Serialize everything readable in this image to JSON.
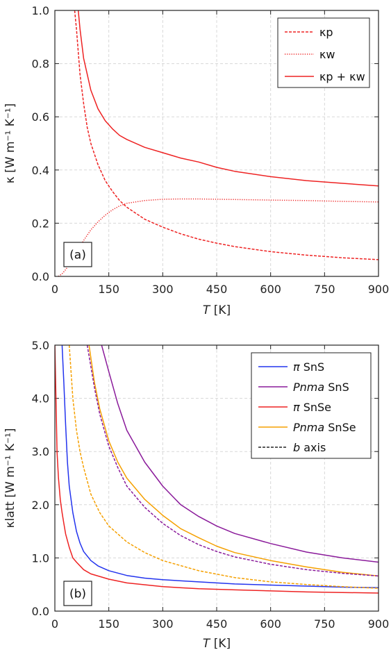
{
  "figure": "two-panel thermal conductivity vs temperature",
  "chart_data": [
    {
      "type": "line",
      "panel_label": "(a)",
      "xlabel_var": "T",
      "xlabel_unit": "[K]",
      "ylabel": "κ [W m⁻¹ K⁻¹]",
      "xlim": [
        0,
        900
      ],
      "ylim": [
        0,
        1.0
      ],
      "xticks": [
        "0",
        "150",
        "300",
        "450",
        "600",
        "750",
        "900"
      ],
      "yticks": [
        "0.0",
        "0.2",
        "0.4",
        "0.6",
        "0.8",
        "1.0"
      ],
      "grid": true,
      "legend_position": "top-right",
      "series": [
        {
          "name": "κp",
          "color": "#ee2222",
          "style": "dashed",
          "x": [
            55,
            60,
            70,
            80,
            90,
            100,
            120,
            140,
            160,
            180,
            200,
            250,
            300,
            350,
            400,
            450,
            500,
            600,
            700,
            800,
            900
          ],
          "y": [
            1.0,
            0.93,
            0.76,
            0.65,
            0.56,
            0.5,
            0.42,
            0.36,
            0.32,
            0.285,
            0.26,
            0.215,
            0.185,
            0.16,
            0.14,
            0.125,
            0.112,
            0.093,
            0.08,
            0.07,
            0.063
          ]
        },
        {
          "name": "κw",
          "color": "#ee2222",
          "style": "dotted",
          "x": [
            10,
            20,
            30,
            40,
            50,
            60,
            70,
            80,
            90,
            100,
            120,
            140,
            160,
            180,
            200,
            250,
            300,
            350,
            400,
            450,
            500,
            600,
            700,
            800,
            900
          ],
          "y": [
            0.0,
            0.01,
            0.025,
            0.045,
            0.065,
            0.09,
            0.11,
            0.135,
            0.155,
            0.175,
            0.205,
            0.23,
            0.25,
            0.265,
            0.275,
            0.285,
            0.29,
            0.291,
            0.291,
            0.29,
            0.289,
            0.287,
            0.285,
            0.282,
            0.28
          ]
        },
        {
          "name": "κp + κw",
          "color": "#ee2222",
          "style": "solid",
          "x": [
            65,
            70,
            80,
            90,
            100,
            120,
            140,
            160,
            180,
            200,
            250,
            300,
            350,
            400,
            450,
            500,
            600,
            700,
            800,
            900
          ],
          "y": [
            1.0,
            0.93,
            0.82,
            0.76,
            0.7,
            0.63,
            0.585,
            0.555,
            0.53,
            0.515,
            0.485,
            0.465,
            0.445,
            0.43,
            0.41,
            0.395,
            0.375,
            0.36,
            0.35,
            0.34
          ]
        }
      ]
    },
    {
      "type": "line",
      "panel_label": "(b)",
      "xlabel_var": "T",
      "xlabel_unit": "[K]",
      "ylabel": "κlatt [W m⁻¹ K⁻¹]",
      "xlim": [
        0,
        900
      ],
      "ylim": [
        0,
        5.0
      ],
      "xticks": [
        "0",
        "150",
        "300",
        "450",
        "600",
        "750",
        "900"
      ],
      "yticks": [
        "0.0",
        "1.0",
        "2.0",
        "3.0",
        "4.0",
        "5.0"
      ],
      "grid": true,
      "legend_position": "top-right",
      "legend": [
        {
          "prefix": "π",
          "name": "SnS",
          "italic_prefix": true,
          "color": "#2233ee",
          "style": "solid"
        },
        {
          "prefix": "Pnma",
          "name": "SnS",
          "italic_prefix": true,
          "color": "#8a1a9a",
          "style": "solid"
        },
        {
          "prefix": "π",
          "name": "SnSe",
          "italic_prefix": true,
          "color": "#ee2222",
          "style": "solid"
        },
        {
          "prefix": "Pnma",
          "name": "SnSe",
          "italic_prefix": true,
          "color": "#f5a000",
          "style": "solid"
        },
        {
          "prefix": "b",
          "name": "axis",
          "italic_prefix": true,
          "color": "#222222",
          "style": "dashed"
        }
      ],
      "series": [
        {
          "name": "π SnS",
          "color": "#2233ee",
          "style": "solid",
          "x": [
            20,
            25,
            30,
            35,
            40,
            50,
            60,
            70,
            80,
            100,
            120,
            150,
            200,
            250,
            300,
            400,
            500,
            600,
            700,
            800,
            900
          ],
          "y": [
            5.0,
            4.3,
            3.5,
            2.8,
            2.35,
            1.85,
            1.5,
            1.28,
            1.12,
            0.95,
            0.85,
            0.76,
            0.67,
            0.62,
            0.59,
            0.55,
            0.51,
            0.49,
            0.47,
            0.45,
            0.44
          ]
        },
        {
          "name": "Pnma SnS",
          "color": "#8a1a9a",
          "style": "solid",
          "x": [
            130,
            150,
            175,
            200,
            250,
            300,
            350,
            400,
            450,
            500,
            600,
            700,
            800,
            900
          ],
          "y": [
            5.0,
            4.5,
            3.9,
            3.4,
            2.8,
            2.35,
            2.0,
            1.78,
            1.6,
            1.46,
            1.27,
            1.11,
            1.0,
            0.92
          ]
        },
        {
          "name": "π SnSe",
          "color": "#ee2222",
          "style": "solid",
          "x": [
            0,
            3,
            6,
            10,
            15,
            20,
            25,
            30,
            40,
            50,
            60,
            80,
            100,
            150,
            200,
            300,
            400,
            500,
            600,
            700,
            800,
            900
          ],
          "y": [
            5.0,
            4.0,
            3.0,
            2.5,
            2.1,
            1.85,
            1.65,
            1.45,
            1.2,
            1.0,
            0.92,
            0.78,
            0.7,
            0.6,
            0.53,
            0.46,
            0.42,
            0.4,
            0.38,
            0.36,
            0.35,
            0.34
          ]
        },
        {
          "name": "Pnma SnSe",
          "color": "#f5a000",
          "style": "solid",
          "x": [
            95,
            110,
            125,
            150,
            175,
            200,
            250,
            300,
            350,
            400,
            450,
            500,
            600,
            700,
            800,
            900
          ],
          "y": [
            5.0,
            4.3,
            3.8,
            3.2,
            2.8,
            2.5,
            2.1,
            1.8,
            1.55,
            1.38,
            1.22,
            1.1,
            0.95,
            0.83,
            0.73,
            0.66
          ]
        },
        {
          "name": "b axis (SnS)",
          "color": "#8a1a9a",
          "style": "dashed",
          "x": [
            90,
            100,
            110,
            125,
            150,
            175,
            200,
            250,
            300,
            350,
            400,
            450,
            500,
            600,
            700,
            800,
            900
          ],
          "y": [
            5.0,
            4.6,
            4.2,
            3.7,
            3.1,
            2.7,
            2.35,
            1.95,
            1.65,
            1.42,
            1.25,
            1.12,
            1.02,
            0.88,
            0.78,
            0.71,
            0.66
          ]
        },
        {
          "name": "b axis (SnSe)",
          "color": "#f5a000",
          "style": "dashed",
          "x": [
            40,
            45,
            50,
            60,
            70,
            80,
            100,
            125,
            150,
            200,
            250,
            300,
            400,
            500,
            600,
            700,
            800,
            900
          ],
          "y": [
            5.0,
            4.5,
            4.0,
            3.4,
            3.0,
            2.7,
            2.2,
            1.85,
            1.6,
            1.3,
            1.1,
            0.95,
            0.76,
            0.63,
            0.55,
            0.5,
            0.46,
            0.43
          ]
        }
      ]
    }
  ]
}
